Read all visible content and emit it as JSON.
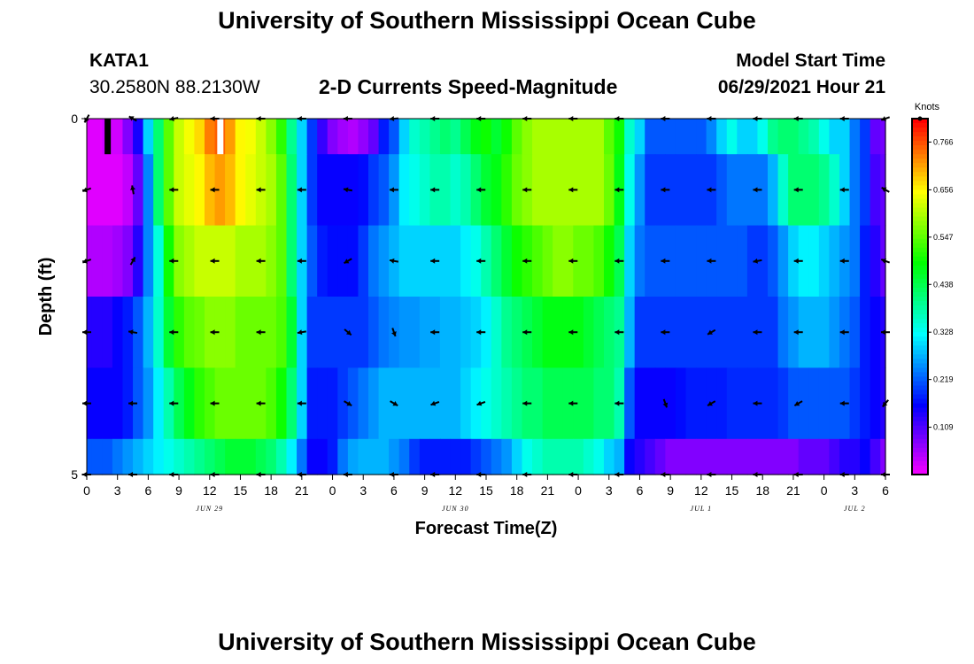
{
  "page": {
    "top_title": "University of Southern Mississippi Ocean Cube",
    "bottom_title": "University of Southern Mississippi Ocean Cube",
    "station": "KATA1",
    "coords": "30.2580N  88.2130W",
    "subtitle": "2-D Currents Speed-Magnitude",
    "model_label": "Model Start Time",
    "model_time": "06/29/2021 Hour 21"
  },
  "chart_data": {
    "type": "heatmap",
    "title": "2-D Currents Speed-Magnitude",
    "xlabel": "Forecast Time(Z)",
    "ylabel": "Depth (ft)",
    "x_tick_labels": [
      "0",
      "3",
      "6",
      "9",
      "12",
      "15",
      "18",
      "21",
      "0",
      "3",
      "6",
      "9",
      "12",
      "15",
      "18",
      "21",
      "0",
      "3",
      "6",
      "9",
      "12",
      "15",
      "18",
      "21",
      "0",
      "3",
      "6"
    ],
    "x_tick_hours": [
      0,
      3,
      6,
      9,
      12,
      15,
      18,
      21,
      24,
      27,
      30,
      33,
      36,
      39,
      42,
      45,
      48,
      51,
      54,
      57,
      60,
      63,
      66,
      69,
      72,
      75,
      78
    ],
    "x_range_hours": [
      0,
      78
    ],
    "date_labels": [
      {
        "label": "JUN 29",
        "hour": 12
      },
      {
        "label": "JUN 30",
        "hour": 36
      },
      {
        "label": "JUL 1",
        "hour": 60
      },
      {
        "label": "JUL 2",
        "hour": 75
      }
    ],
    "y_tick_labels": [
      "0",
      "5"
    ],
    "y_range": [
      0,
      5
    ],
    "colorbar": {
      "label": "Knots",
      "ticks": [
        "0.766",
        "0.656",
        "0.547",
        "0.438",
        "0.328",
        "0.219",
        "0.109"
      ],
      "tick_values": [
        0.766,
        0.656,
        0.547,
        0.438,
        0.328,
        0.219,
        0.109
      ],
      "range": [
        0,
        0.82
      ]
    },
    "x_hours": [
      0,
      1,
      2,
      3,
      4,
      5,
      6,
      7,
      8,
      9,
      10,
      11,
      12,
      13,
      14,
      15,
      16,
      17,
      18,
      19,
      20,
      21,
      22,
      23,
      24,
      25,
      26,
      27,
      28,
      29,
      30,
      31,
      32,
      33,
      34,
      35,
      36,
      37,
      38,
      39,
      40,
      41,
      42,
      43,
      44,
      45,
      46,
      47,
      48,
      49,
      50,
      51,
      52,
      53,
      54,
      55,
      56,
      57,
      58,
      59,
      60,
      61,
      62,
      63,
      64,
      65,
      66,
      67,
      68,
      69,
      70,
      71,
      72,
      73,
      74,
      75,
      76,
      77,
      78
    ],
    "depth_bins": [
      "0-0.5",
      "0.5-1.5",
      "1.5-2.5",
      "2.5-3.5",
      "3.5-4.5",
      "4.5-5"
    ],
    "speed_rows": [
      [
        0.02,
        0.02,
        0.03,
        0.03,
        0.08,
        0.15,
        0.3,
        0.42,
        0.55,
        0.62,
        0.65,
        0.68,
        0.74,
        0.76,
        0.72,
        0.66,
        0.65,
        0.62,
        0.58,
        0.52,
        0.4,
        0.3,
        0.2,
        0.13,
        0.08,
        0.06,
        0.05,
        0.07,
        0.1,
        0.18,
        0.22,
        0.3,
        0.36,
        0.38,
        0.4,
        0.42,
        0.4,
        0.44,
        0.48,
        0.5,
        0.46,
        0.5,
        0.55,
        0.58,
        0.6,
        0.6,
        0.6,
        0.6,
        0.6,
        0.6,
        0.6,
        0.55,
        0.5,
        0.36,
        0.3,
        0.22,
        0.22,
        0.22,
        0.22,
        0.22,
        0.22,
        0.25,
        0.3,
        0.34,
        0.3,
        0.3,
        0.34,
        0.4,
        0.42,
        0.42,
        0.4,
        0.38,
        0.34,
        0.3,
        0.3,
        0.24,
        0.2,
        0.1,
        0.09
      ],
      [
        0.02,
        0.02,
        0.02,
        0.02,
        0.04,
        0.1,
        0.25,
        0.42,
        0.55,
        0.62,
        0.64,
        0.66,
        0.7,
        0.72,
        0.7,
        0.66,
        0.64,
        0.62,
        0.6,
        0.55,
        0.42,
        0.3,
        0.2,
        0.16,
        0.16,
        0.16,
        0.16,
        0.17,
        0.2,
        0.22,
        0.26,
        0.32,
        0.34,
        0.36,
        0.38,
        0.38,
        0.36,
        0.38,
        0.42,
        0.46,
        0.48,
        0.52,
        0.56,
        0.58,
        0.6,
        0.6,
        0.6,
        0.6,
        0.6,
        0.6,
        0.6,
        0.56,
        0.48,
        0.34,
        0.26,
        0.2,
        0.2,
        0.2,
        0.2,
        0.2,
        0.2,
        0.2,
        0.22,
        0.24,
        0.24,
        0.24,
        0.24,
        0.28,
        0.36,
        0.42,
        0.42,
        0.42,
        0.4,
        0.36,
        0.3,
        0.24,
        0.2,
        0.12,
        0.1
      ],
      [
        0.05,
        0.05,
        0.05,
        0.06,
        0.08,
        0.14,
        0.25,
        0.35,
        0.5,
        0.58,
        0.6,
        0.62,
        0.62,
        0.62,
        0.62,
        0.6,
        0.6,
        0.6,
        0.58,
        0.55,
        0.42,
        0.3,
        0.22,
        0.18,
        0.17,
        0.17,
        0.17,
        0.2,
        0.24,
        0.26,
        0.28,
        0.3,
        0.3,
        0.3,
        0.3,
        0.3,
        0.3,
        0.32,
        0.34,
        0.38,
        0.42,
        0.46,
        0.5,
        0.52,
        0.54,
        0.56,
        0.58,
        0.58,
        0.56,
        0.56,
        0.54,
        0.5,
        0.44,
        0.3,
        0.24,
        0.22,
        0.22,
        0.22,
        0.22,
        0.22,
        0.22,
        0.22,
        0.22,
        0.22,
        0.22,
        0.2,
        0.2,
        0.22,
        0.26,
        0.3,
        0.32,
        0.32,
        0.3,
        0.28,
        0.26,
        0.24,
        0.18,
        0.14,
        0.1
      ],
      [
        0.14,
        0.14,
        0.14,
        0.16,
        0.18,
        0.22,
        0.28,
        0.36,
        0.46,
        0.52,
        0.55,
        0.56,
        0.58,
        0.58,
        0.58,
        0.56,
        0.56,
        0.56,
        0.56,
        0.54,
        0.46,
        0.3,
        0.2,
        0.2,
        0.2,
        0.2,
        0.2,
        0.2,
        0.22,
        0.24,
        0.25,
        0.26,
        0.26,
        0.27,
        0.27,
        0.28,
        0.28,
        0.29,
        0.3,
        0.32,
        0.36,
        0.4,
        0.42,
        0.44,
        0.46,
        0.48,
        0.48,
        0.48,
        0.48,
        0.46,
        0.44,
        0.42,
        0.4,
        0.28,
        0.2,
        0.2,
        0.2,
        0.2,
        0.2,
        0.2,
        0.2,
        0.2,
        0.2,
        0.2,
        0.2,
        0.2,
        0.2,
        0.2,
        0.24,
        0.26,
        0.28,
        0.28,
        0.28,
        0.26,
        0.24,
        0.22,
        0.18,
        0.16,
        0.14
      ],
      [
        0.16,
        0.16,
        0.16,
        0.16,
        0.18,
        0.22,
        0.26,
        0.32,
        0.38,
        0.44,
        0.48,
        0.52,
        0.54,
        0.56,
        0.56,
        0.56,
        0.56,
        0.56,
        0.54,
        0.5,
        0.42,
        0.3,
        0.18,
        0.18,
        0.18,
        0.2,
        0.22,
        0.24,
        0.26,
        0.28,
        0.28,
        0.28,
        0.28,
        0.28,
        0.28,
        0.28,
        0.28,
        0.3,
        0.32,
        0.34,
        0.36,
        0.38,
        0.4,
        0.42,
        0.42,
        0.44,
        0.44,
        0.44,
        0.44,
        0.44,
        0.42,
        0.42,
        0.38,
        0.22,
        0.16,
        0.16,
        0.16,
        0.16,
        0.17,
        0.18,
        0.18,
        0.18,
        0.18,
        0.19,
        0.19,
        0.19,
        0.19,
        0.19,
        0.2,
        0.22,
        0.22,
        0.22,
        0.22,
        0.22,
        0.22,
        0.2,
        0.18,
        0.16,
        0.14
      ],
      [
        0.22,
        0.22,
        0.22,
        0.24,
        0.26,
        0.28,
        0.3,
        0.32,
        0.34,
        0.36,
        0.38,
        0.4,
        0.42,
        0.44,
        0.46,
        0.46,
        0.46,
        0.44,
        0.42,
        0.38,
        0.32,
        0.24,
        0.16,
        0.16,
        0.18,
        0.24,
        0.27,
        0.28,
        0.28,
        0.28,
        0.26,
        0.24,
        0.2,
        0.18,
        0.18,
        0.18,
        0.18,
        0.18,
        0.2,
        0.22,
        0.24,
        0.26,
        0.3,
        0.34,
        0.36,
        0.38,
        0.38,
        0.38,
        0.38,
        0.36,
        0.34,
        0.3,
        0.28,
        0.16,
        0.14,
        0.12,
        0.1,
        0.08,
        0.08,
        0.08,
        0.08,
        0.08,
        0.08,
        0.08,
        0.08,
        0.08,
        0.08,
        0.08,
        0.08,
        0.08,
        0.1,
        0.1,
        0.1,
        0.12,
        0.14,
        0.14,
        0.16,
        0.12,
        0.08
      ]
    ],
    "vector_hours": [
      0,
      4.5,
      8.5,
      12.5,
      17,
      21,
      25.5,
      30,
      34,
      38.5,
      43,
      47.5,
      52,
      56.5,
      61,
      65.5,
      69.5,
      74,
      78
    ],
    "vector_depths": [
      0,
      1,
      2,
      3,
      4,
      5
    ],
    "vector_dirs_deg": [
      [
        240,
        150,
        190,
        180,
        180,
        180,
        180,
        185,
        180,
        180,
        180,
        180,
        180,
        180,
        180,
        180,
        180,
        180,
        200
      ],
      [
        200,
        100,
        180,
        180,
        180,
        180,
        170,
        180,
        180,
        180,
        180,
        180,
        180,
        180,
        180,
        180,
        180,
        180,
        150
      ],
      [
        200,
        60,
        180,
        180,
        180,
        180,
        210,
        170,
        180,
        180,
        180,
        180,
        180,
        180,
        180,
        190,
        180,
        180,
        160
      ],
      [
        180,
        170,
        180,
        180,
        180,
        190,
        320,
        290,
        180,
        180,
        180,
        180,
        180,
        180,
        210,
        180,
        180,
        180,
        180
      ],
      [
        180,
        180,
        180,
        180,
        180,
        180,
        330,
        330,
        200,
        200,
        180,
        180,
        180,
        290,
        210,
        180,
        210,
        180,
        230
      ],
      [
        180,
        180,
        180,
        180,
        180,
        180,
        180,
        180,
        180,
        180,
        180,
        180,
        180,
        180,
        180,
        180,
        180,
        180,
        180
      ]
    ],
    "bad_data_markers": [
      {
        "hour": 2,
        "depth_range": [
          0,
          0.5
        ],
        "color": "#000000"
      },
      {
        "hour": 13,
        "depth_range": [
          0,
          0.5
        ],
        "color": "#ffffff"
      }
    ]
  }
}
